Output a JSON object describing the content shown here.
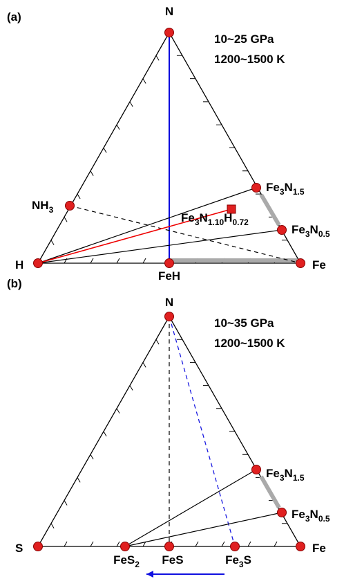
{
  "panels": [
    {
      "label": "(a)",
      "conditions": [
        "10~25 GPa",
        "1200~1500 K"
      ],
      "nodes": [
        {
          "label": [
            "N"
          ]
        },
        {
          "label": [
            "H"
          ]
        },
        {
          "label": [
            "Fe"
          ]
        },
        {
          "label": [
            "NH",
            "3"
          ]
        },
        {
          "label": [
            "FeH"
          ]
        },
        {
          "label": [
            "Fe",
            "3",
            "N",
            "1.5"
          ]
        },
        {
          "label": [
            "Fe",
            "3",
            "N",
            "0.5"
          ]
        },
        {
          "label": [
            "Fe",
            "3",
            "N",
            "1.10",
            "H",
            "0.72"
          ]
        }
      ]
    },
    {
      "label": "(b)",
      "conditions": [
        "10~35 GPa",
        "1200~1500 K"
      ],
      "nodes": [
        {
          "label": [
            "N"
          ]
        },
        {
          "label": [
            "S"
          ]
        },
        {
          "label": [
            "Fe"
          ]
        },
        {
          "label": [
            "FeS",
            "2"
          ]
        },
        {
          "label": [
            "FeS"
          ]
        },
        {
          "label": [
            "Fe",
            "3",
            "S"
          ]
        },
        {
          "label": [
            "Fe",
            "3",
            "N",
            "1.5"
          ]
        },
        {
          "label": [
            "Fe",
            "3",
            "N",
            "0.5"
          ]
        }
      ]
    }
  ]
}
